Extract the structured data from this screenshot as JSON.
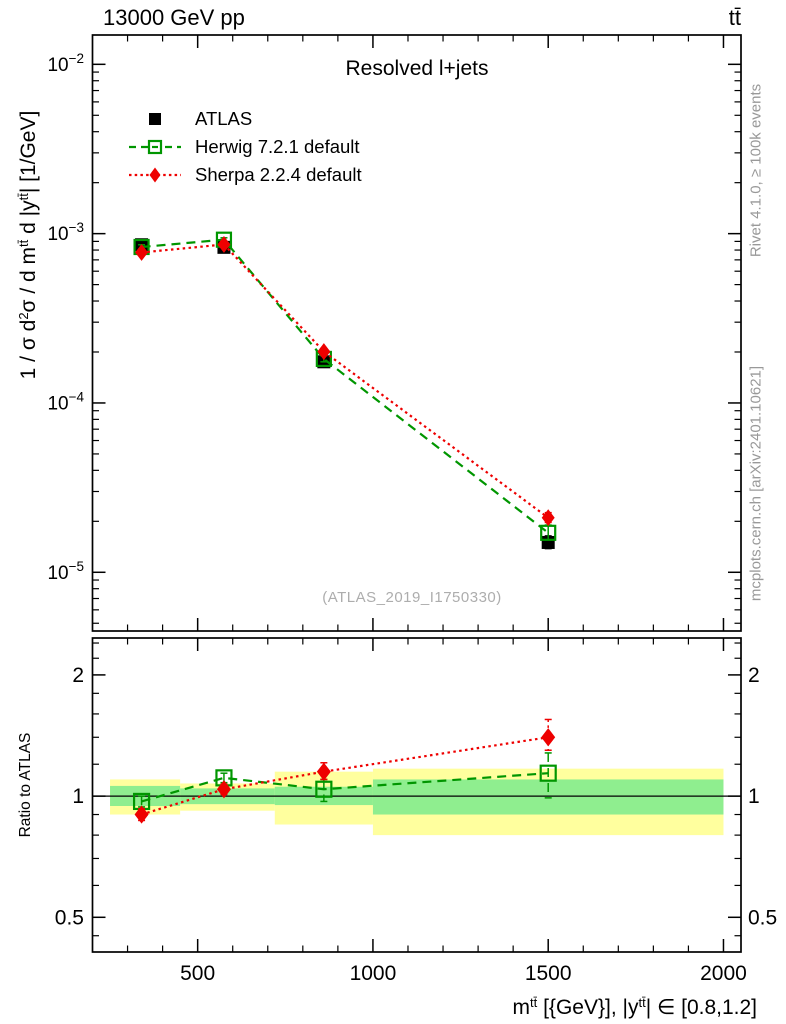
{
  "header": {
    "energy": "13000 GeV pp",
    "process": "tt̄"
  },
  "title": "Resolved l+jets",
  "watermark": "(ATLAS_2019_I1750330)",
  "side_notes": {
    "top": "Rivet 4.1.0, ≥ 100k events",
    "bottom": "mcplots.cern.ch [arXiv:2401.10621]"
  },
  "legend": [
    {
      "label": "ATLAS",
      "marker": "filled-square",
      "color": "#000000"
    },
    {
      "label": "Herwig 7.2.1 default",
      "marker": "open-square",
      "line": "dashed",
      "color": "#009600"
    },
    {
      "label": "Sherpa 2.2.4 default",
      "marker": "filled-diamond",
      "line": "dotted",
      "color": "#ee0000"
    }
  ],
  "axes": {
    "y_label_parts": {
      "a": "1 / σ d",
      "sup1": "2",
      "b": "σ / d m",
      "sup2": "tt̄",
      "c": " d |y",
      "sup3": "tt̄",
      "d": "| [1/GeV]"
    },
    "x_label_parts": {
      "a": "m",
      "sup1": "tt̄",
      "b": " [{GeV}], |y",
      "sup2": "tt̄",
      "c": "| ∈ [0.8,1.2]"
    },
    "ratio_label": "Ratio to ATLAS"
  },
  "chart_data": {
    "type": "line",
    "title": "Resolved l+jets",
    "xlabel": "m^tt [{GeV}], |y^tt| in [0.8,1.2]",
    "ylabel": "1/σ d²σ / d m^tt d |y^tt| [1/GeV]",
    "legend_position": "top-left",
    "grid": false,
    "xlim": [
      200,
      2050
    ],
    "x_major_ticks": [
      500,
      1000,
      1500,
      2000
    ],
    "x_minor_step": 100,
    "bins": [
      [
        250,
        450
      ],
      [
        450,
        720
      ],
      [
        720,
        1000
      ],
      [
        1000,
        2000
      ]
    ],
    "x": [
      340,
      575,
      860,
      1500
    ],
    "main": {
      "yscale": "log",
      "ylim": [
        4.5e-06,
        0.0149
      ],
      "y_major_ticks": [
        0.01,
        0.001,
        0.0001,
        1e-05
      ],
      "series": [
        {
          "name": "ATLAS",
          "color": "#000000",
          "marker": "filled-square",
          "values": [
            0.00086,
            0.00083,
            0.000175,
            1.5e-05
          ],
          "yerr": [
            [
              0.00082,
              0.0009
            ],
            [
              0.00079,
              0.00087
            ],
            [
              0.000166,
              0.000184
            ],
            [
              1.38e-05,
              1.64e-05
            ]
          ]
        },
        {
          "name": "Herwig 7.2.1 default",
          "color": "#009600",
          "marker": "open-square",
          "line": "dashed",
          "values": [
            0.000834,
            0.000921,
            0.000182,
            1.71e-05
          ],
          "yerr": [
            [
              0.00081,
              0.00086
            ],
            [
              0.0009,
              0.000945
            ],
            [
              0.000175,
              0.00019
            ],
            [
              1.55e-05,
              1.9e-05
            ]
          ]
        },
        {
          "name": "Sherpa 2.2.4 default",
          "color": "#ee0000",
          "marker": "filled-diamond",
          "line": "dotted",
          "values": [
            0.000774,
            0.000863,
            0.000201,
            2.1e-05
          ],
          "yerr": [
            [
              0.00075,
              0.0008
            ],
            [
              0.00084,
              0.00089
            ],
            [
              0.000194,
              0.000208
            ],
            [
              1.97e-05,
              2.25e-05
            ]
          ]
        }
      ]
    },
    "ratio": {
      "yscale": "log",
      "ylabel": "Ratio to ATLAS",
      "ylim": [
        0.41,
        2.47
      ],
      "y_major_ticks": [
        0.5,
        1,
        2
      ],
      "y_minor_ticks": [
        0.45,
        0.6,
        0.7,
        0.8,
        0.9,
        1.2,
        1.4,
        1.6,
        1.8,
        2.2,
        2.4
      ],
      "band_colors": {
        "yellow": "#ffff9e",
        "green": "#8fee8f"
      },
      "bands": [
        {
          "bin": [
            250,
            450
          ],
          "yellow": [
            0.9,
            1.1
          ],
          "green": [
            0.945,
            1.06
          ]
        },
        {
          "bin": [
            450,
            720
          ],
          "yellow": [
            0.92,
            1.075
          ],
          "green": [
            0.955,
            1.045
          ]
        },
        {
          "bin": [
            720,
            1000
          ],
          "yellow": [
            0.85,
            1.15
          ],
          "green": [
            0.95,
            1.055
          ]
        },
        {
          "bin": [
            1000,
            2000
          ],
          "yellow": [
            0.8,
            1.17
          ],
          "green": [
            0.9,
            1.1
          ]
        }
      ],
      "series": [
        {
          "name": "Herwig 7.2.1 default",
          "color": "#009600",
          "marker": "open-square",
          "line": "dashed",
          "values": [
            0.97,
            1.11,
            1.04,
            1.14
          ],
          "yerr": [
            [
              0.94,
              1.0
            ],
            [
              1.08,
              1.14
            ],
            [
              0.97,
              1.1
            ],
            [
              0.99,
              1.28
            ]
          ]
        },
        {
          "name": "Sherpa 2.2.4 default",
          "color": "#ee0000",
          "marker": "filled-diamond",
          "line": "dotted",
          "values": [
            0.9,
            1.04,
            1.15,
            1.4
          ],
          "yerr": [
            [
              0.87,
              0.93
            ],
            [
              1.01,
              1.07
            ],
            [
              1.1,
              1.21
            ],
            [
              1.3,
              1.55
            ]
          ]
        }
      ]
    }
  }
}
